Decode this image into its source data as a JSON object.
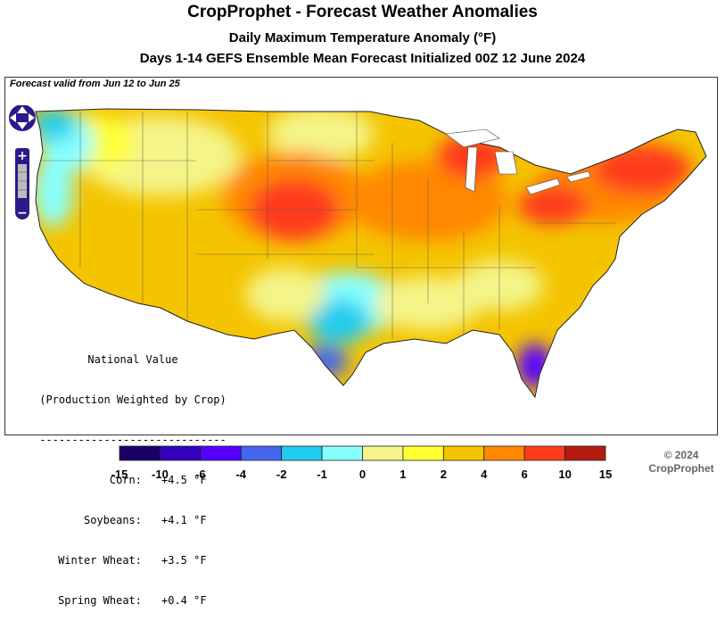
{
  "header": {
    "title": "CropProphet - Forecast Weather Anomalies",
    "subtitle": "Daily Maximum Temperature Anomaly (°F)",
    "run_info": "Days 1-14 GEFS Ensemble Mean Forecast Initialized 00Z 12 June 2024"
  },
  "map": {
    "valid_label": "Forecast valid from Jun 12 to Jun 25",
    "controls": [
      {
        "name": "pan-control-icon"
      },
      {
        "name": "zoom-in-icon",
        "symbol": "+"
      },
      {
        "name": "zoom-out-icon",
        "symbol": "−"
      }
    ]
  },
  "national_value": {
    "heading1": "National Value",
    "heading2": "(Production Weighted by Crop)",
    "divider": "-----------------------------",
    "rows": [
      {
        "crop": "Corn:",
        "value": "+4.5 °F"
      },
      {
        "crop": "Soybeans:",
        "value": "+4.1 °F"
      },
      {
        "crop": "Winter Wheat:",
        "value": "+3.5 °F"
      },
      {
        "crop": "Spring Wheat:",
        "value": "+0.4 °F"
      }
    ]
  },
  "colorbar": {
    "ticks": [
      "-15",
      "-10",
      "-6",
      "-4",
      "-2",
      "-1",
      "0",
      "1",
      "2",
      "4",
      "6",
      "10",
      "15"
    ],
    "colors": [
      "#1a0066",
      "#3300bb",
      "#5500ff",
      "#4466ee",
      "#22ccee",
      "#88ffff",
      "#f4f488",
      "#ffff33",
      "#f4c400",
      "#ff8800",
      "#ff3a1a",
      "#b51a10"
    ]
  },
  "footer": {
    "copyright": "© 2024",
    "brand": "CropProphet"
  }
}
